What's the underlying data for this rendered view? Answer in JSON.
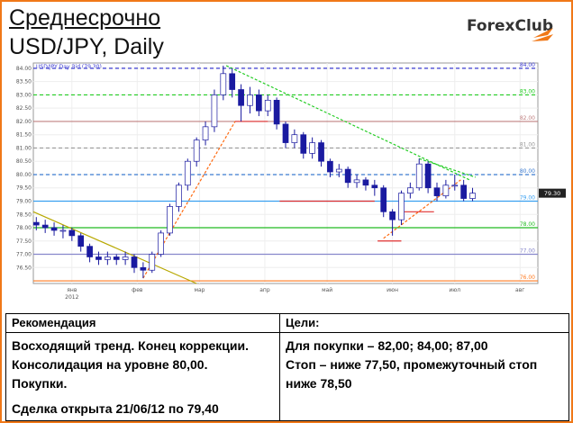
{
  "header": {
    "title": "Среднесрочно",
    "subtitle": "USD/JPY, Daily",
    "logo": "ForexClub"
  },
  "chart_data": {
    "type": "candlestick",
    "legend": "USD/JPY Day Bid (79.30)",
    "x": [
      -12,
      -9,
      -6,
      -3,
      0,
      3,
      6,
      9,
      12,
      15,
      18,
      21,
      24,
      27,
      30,
      33,
      36,
      39,
      42,
      45,
      48,
      51,
      54,
      57,
      60,
      63,
      66,
      69,
      72,
      75,
      78,
      81,
      84,
      87,
      90,
      93,
      96,
      99,
      102,
      105,
      108,
      111,
      114,
      117,
      120,
      123,
      126,
      129,
      132,
      135
    ],
    "open": [
      78.2,
      78.1,
      78.0,
      77.9,
      77.9,
      77.7,
      77.3,
      76.9,
      76.8,
      76.9,
      76.8,
      76.9,
      76.5,
      76.4,
      77.0,
      77.8,
      78.8,
      79.6,
      80.5,
      81.3,
      81.8,
      83.0,
      83.8,
      83.2,
      82.6,
      83.0,
      82.4,
      82.8,
      81.9,
      81.2,
      81.5,
      80.8,
      81.2,
      80.5,
      80.1,
      80.2,
      79.7,
      79.8,
      79.6,
      79.5,
      78.6,
      78.3,
      79.3,
      79.5,
      80.4,
      79.5,
      79.2,
      79.6,
      79.6,
      79.1
    ],
    "high": [
      78.4,
      78.3,
      78.2,
      78.1,
      78.0,
      77.8,
      77.4,
      77.1,
      77.1,
      77.0,
      77.1,
      77.0,
      76.7,
      77.1,
      77.9,
      78.9,
      79.7,
      80.6,
      81.4,
      82.0,
      83.2,
      84.1,
      84.0,
      83.4,
      83.3,
      83.2,
      83.0,
      82.9,
      82.0,
      81.7,
      81.6,
      81.4,
      81.3,
      80.6,
      80.4,
      80.3,
      80.0,
      79.9,
      79.8,
      79.6,
      78.7,
      79.4,
      79.7,
      80.6,
      80.5,
      79.7,
      79.8,
      80.0,
      79.8,
      79.5
    ],
    "low": [
      77.9,
      77.8,
      77.7,
      77.6,
      77.5,
      77.1,
      76.7,
      76.6,
      76.6,
      76.6,
      76.6,
      76.3,
      76.1,
      76.3,
      76.9,
      77.7,
      78.6,
      79.4,
      80.3,
      81.1,
      81.6,
      82.8,
      82.9,
      82.0,
      82.3,
      82.2,
      82.2,
      81.7,
      81.0,
      81.0,
      80.6,
      80.6,
      80.3,
      79.9,
      79.9,
      79.5,
      79.5,
      79.4,
      79.2,
      78.4,
      77.7,
      78.1,
      79.1,
      79.4,
      79.3,
      79.0,
      79.1,
      79.4,
      79.0,
      79.0
    ],
    "close": [
      78.1,
      78.0,
      77.9,
      77.9,
      77.7,
      77.3,
      76.9,
      76.8,
      76.9,
      76.8,
      76.9,
      76.5,
      76.4,
      77.0,
      77.8,
      78.8,
      79.6,
      80.5,
      81.3,
      81.8,
      83.0,
      83.8,
      83.2,
      82.6,
      83.0,
      82.4,
      82.8,
      81.9,
      81.2,
      81.5,
      80.8,
      81.2,
      80.5,
      80.1,
      80.2,
      79.7,
      79.8,
      79.6,
      79.5,
      78.6,
      78.3,
      79.3,
      79.5,
      80.4,
      79.5,
      79.2,
      79.6,
      79.6,
      79.1,
      79.3
    ],
    "up_color": "#ffffff",
    "down_color": "#1a1aa0",
    "xlim": [
      -13,
      157
    ],
    "ylim": [
      75.9,
      84.2
    ],
    "xticks": [
      {
        "value": 0,
        "label": "янв"
      },
      {
        "value": 22,
        "label": "фев"
      },
      {
        "value": 43,
        "label": "мар"
      },
      {
        "value": 65,
        "label": "апр"
      },
      {
        "value": 86,
        "label": "май"
      },
      {
        "value": 108,
        "label": "июн"
      },
      {
        "value": 129,
        "label": "июл"
      },
      {
        "value": 151,
        "label": "авг"
      }
    ],
    "year_label": "2012",
    "yticks": [
      {
        "value": 76.5,
        "label": "76.50"
      },
      {
        "value": 77,
        "label": "77.00"
      },
      {
        "value": 77.5,
        "label": "77.50"
      },
      {
        "value": 78,
        "label": "78.00"
      },
      {
        "value": 78.5,
        "label": "78.50"
      },
      {
        "value": 79,
        "label": "79.00"
      },
      {
        "value": 79.5,
        "label": "79.50"
      },
      {
        "value": 80,
        "label": "80.00"
      },
      {
        "value": 80.5,
        "label": "80.50"
      },
      {
        "value": 81,
        "label": "81.00"
      },
      {
        "value": 81.5,
        "label": "81.50"
      },
      {
        "value": 82,
        "label": "82.00"
      },
      {
        "value": 82.5,
        "label": "82.50"
      },
      {
        "value": 83,
        "label": "83.00"
      },
      {
        "value": 83.5,
        "label": "83.50"
      },
      {
        "value": 84,
        "label": "84.00"
      }
    ],
    "grid": true,
    "levels": [
      {
        "value": 84,
        "label": "84.00",
        "color": "#3a3ad0",
        "dash": true
      },
      {
        "value": 83,
        "label": "83.00",
        "color": "#22cc22",
        "dash": true
      },
      {
        "value": 82,
        "label": "82.00",
        "color": "#c08080",
        "dash": false
      },
      {
        "value": 81,
        "label": "81.00",
        "color": "#999999",
        "dash": true
      },
      {
        "value": 80,
        "label": "80.00",
        "color": "#3a7ad0",
        "dash": true
      },
      {
        "value": 79,
        "label": "79.00",
        "color": "#3aa0f0",
        "dash": false
      },
      {
        "value": 78,
        "label": "78.00",
        "color": "#22bb22",
        "dash": false
      },
      {
        "value": 77,
        "label": "77.00",
        "color": "#8888cc",
        "dash": false
      },
      {
        "value": 76,
        "label": "76.00",
        "color": "#ff7a20",
        "dash": false
      }
    ],
    "trendlines": [
      {
        "x": [
          52,
          134
        ],
        "y": [
          84.1,
          79.8
        ],
        "color": "#22cc22",
        "dash": true
      },
      {
        "x": [
          117,
          136
        ],
        "y": [
          80.6,
          79.9
        ],
        "color": "#22cc22",
        "dash": true
      },
      {
        "x": [
          24,
          55
        ],
        "y": [
          76.1,
          82.0
        ],
        "color": "#ff6a10",
        "dash": true
      },
      {
        "x": [
          105,
          131
        ],
        "y": [
          77.6,
          79.8
        ],
        "color": "#ff6a10",
        "dash": true
      },
      {
        "x": [
          -13,
          42
        ],
        "y": [
          78.6,
          75.9
        ],
        "color": "#b8a800",
        "dash": false
      },
      {
        "x": [
          55,
          66
        ],
        "y": [
          82.0,
          82.0
        ],
        "color": "#e03030",
        "dash": false
      },
      {
        "x": [
          70,
          102
        ],
        "y": [
          79.0,
          79.0
        ],
        "color": "#e03030",
        "dash": false
      },
      {
        "x": [
          103,
          111
        ],
        "y": [
          77.5,
          77.5
        ],
        "color": "#e03030",
        "dash": false
      },
      {
        "x": [
          112,
          122
        ],
        "y": [
          78.6,
          78.6
        ],
        "color": "#e03030",
        "dash": false
      }
    ],
    "last_price": {
      "value": 79.3,
      "label": "79.30"
    }
  },
  "table": {
    "headers": [
      "Рекомендация",
      "Цели:"
    ],
    "left": [
      "Восходящий тренд. Конец коррекции.",
      "Консолидация на уровне 80,00.",
      "Покупки."
    ],
    "deal": "Сделка открыта 21/06/12 по 79,40",
    "right": [
      "Для покупки – 82,00; 84,00; 87,00",
      "Стоп – ниже 77,50, промежуточный стоп",
      "ниже 78,50"
    ]
  }
}
